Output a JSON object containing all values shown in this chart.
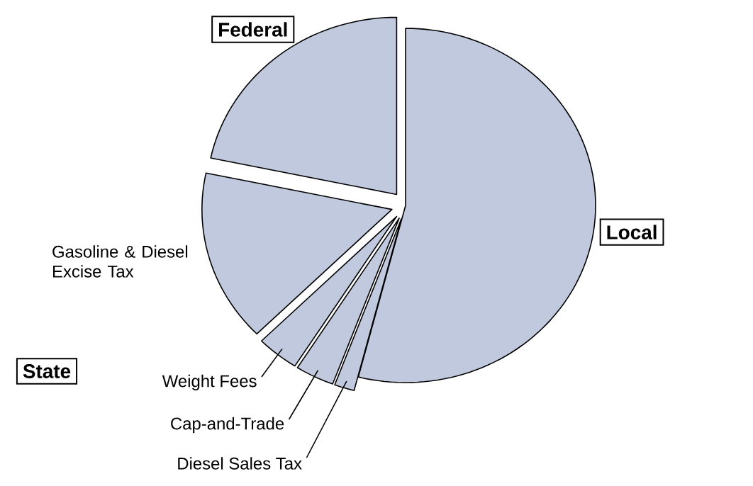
{
  "chart_data": {
    "type": "pie",
    "categories": [
      "Local",
      "Diesel Sales Tax",
      "Cap-and-Trade",
      "Weight Fees",
      "Gasoline & Diesel Excise Tax",
      "Federal"
    ],
    "values": [
      54,
      1.7,
      3.3,
      3.6,
      15.7,
      21.7
    ],
    "colors": [
      "#c0c9dd",
      "#c0c9dd",
      "#c0c9dd",
      "#c0c9dd",
      "#c0c9dd",
      "#c0c9dd"
    ],
    "annotations": [
      "State"
    ]
  }
}
